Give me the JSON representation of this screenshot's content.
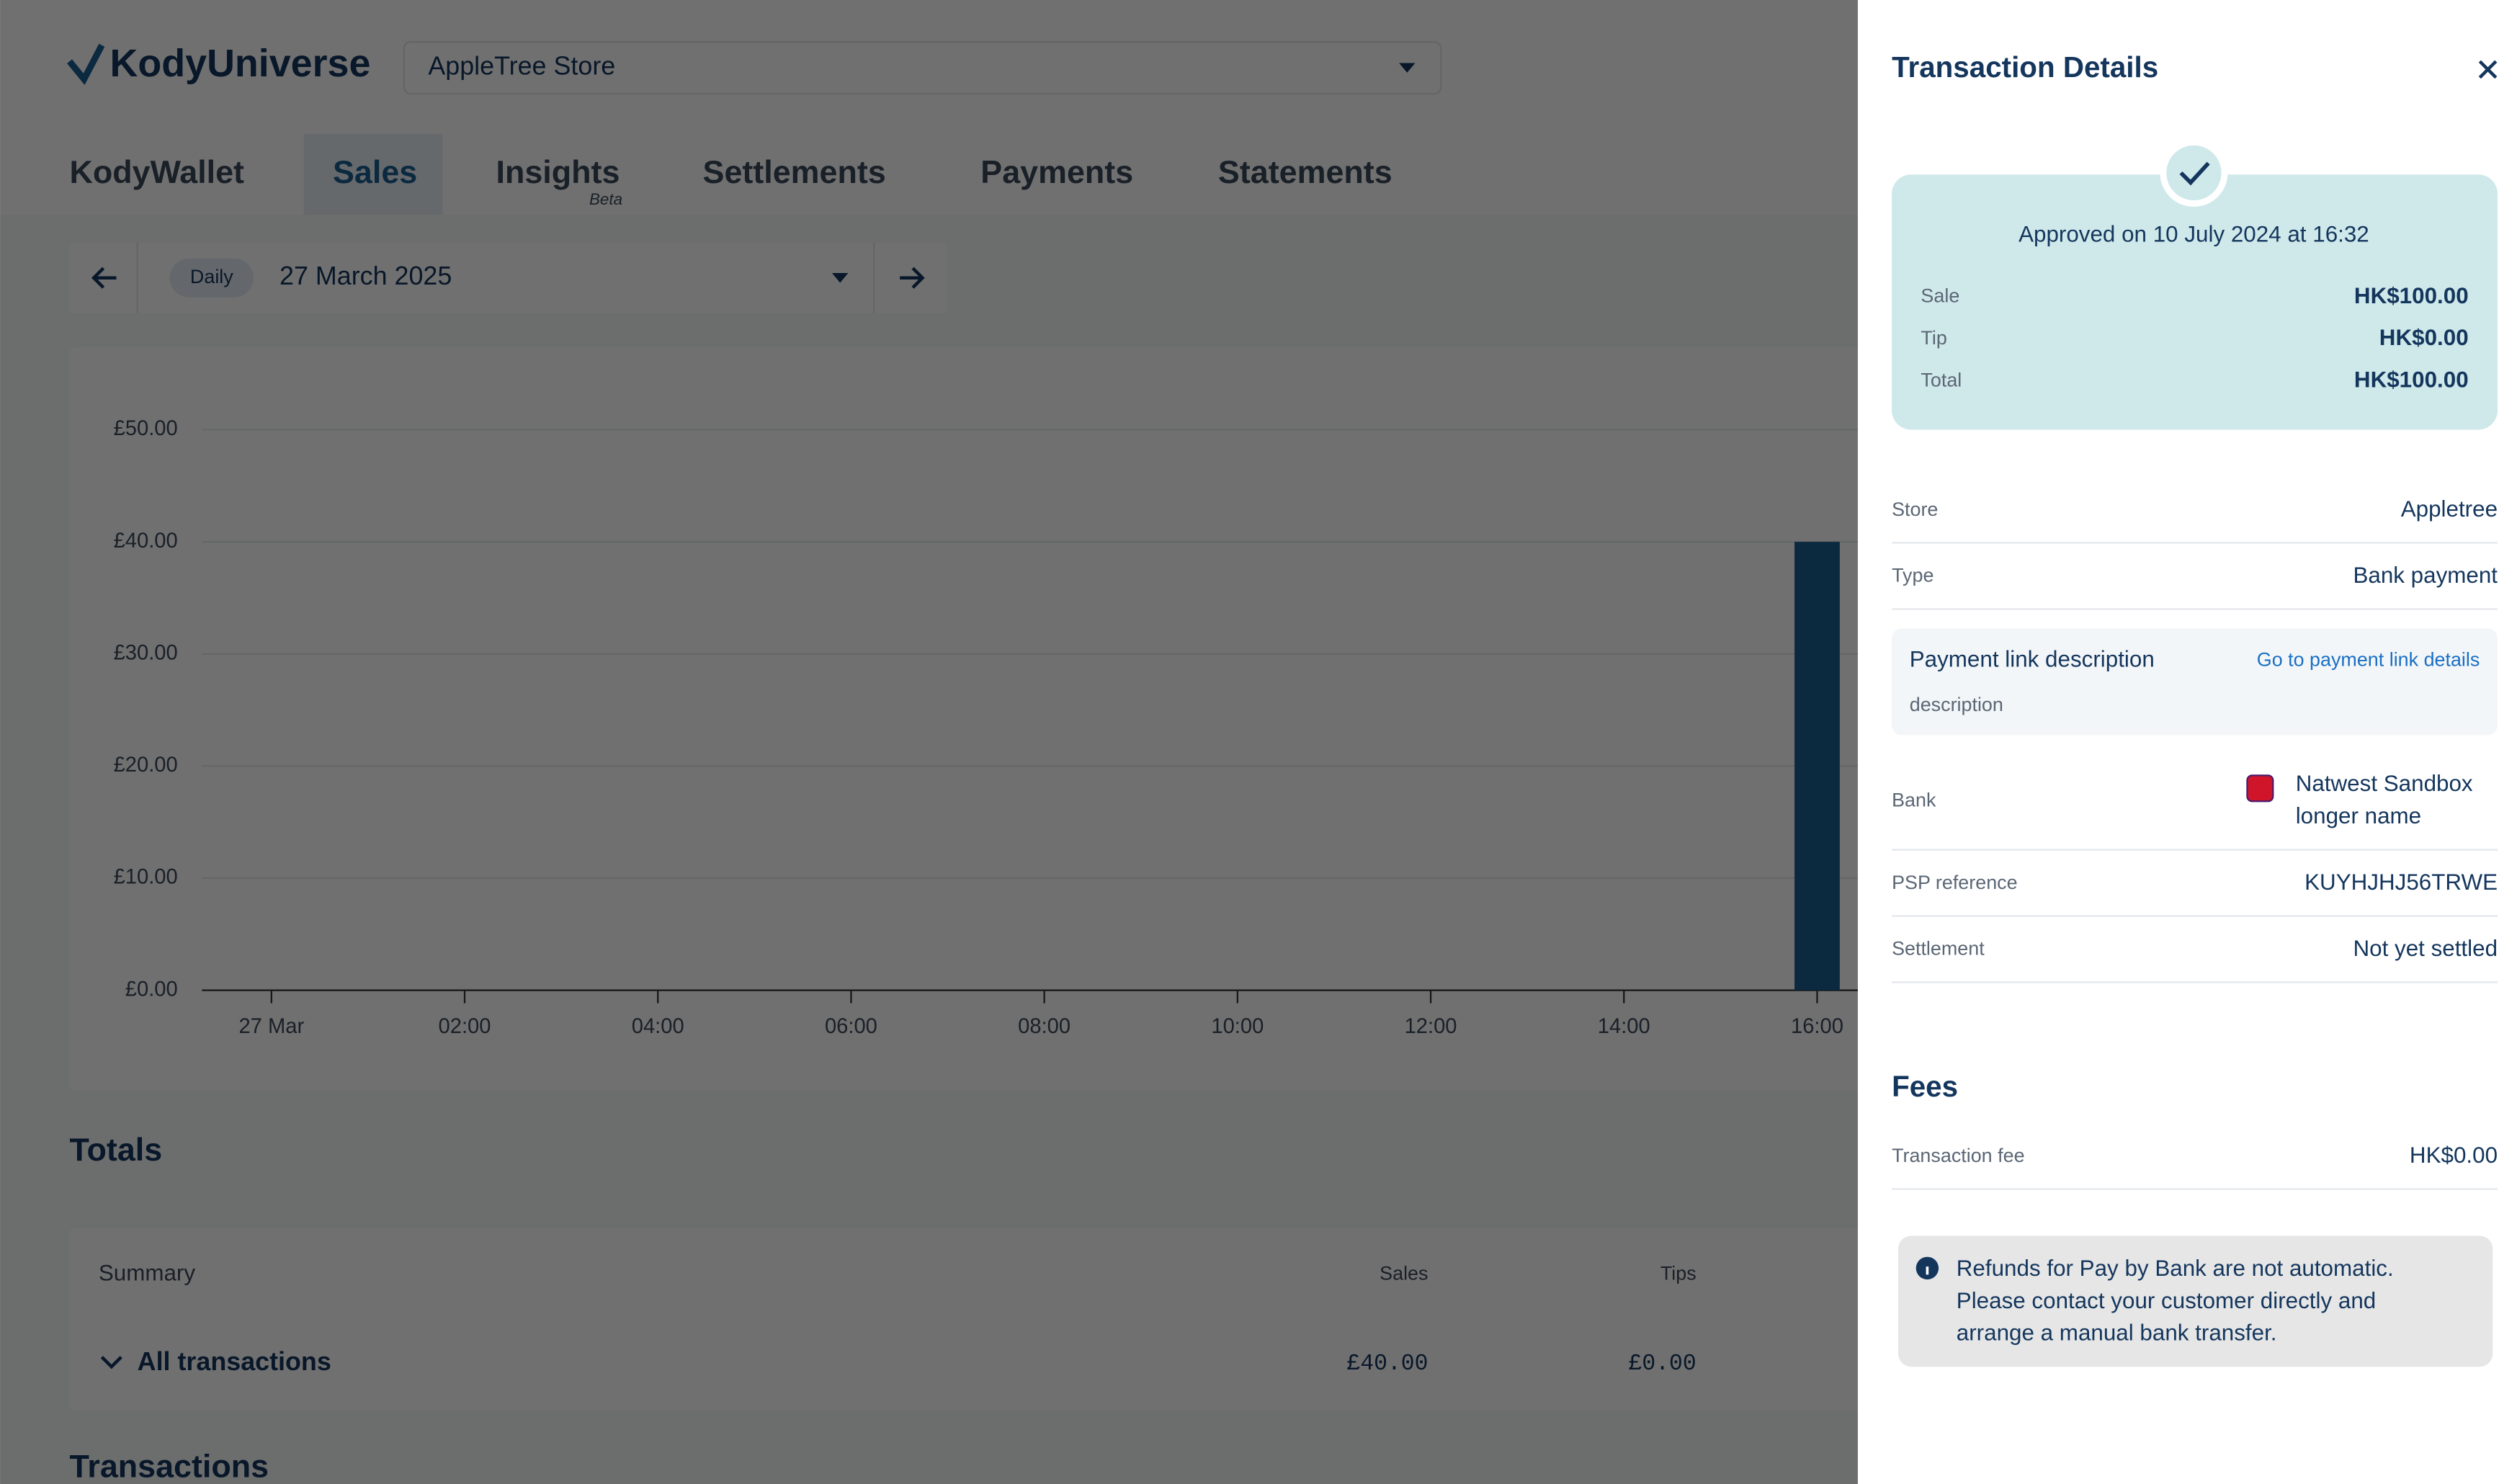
{
  "header": {
    "logo": "KodyUniverse",
    "store": "AppleTree Store"
  },
  "tabs": [
    "KodyWallet",
    "Sales",
    "Insights",
    "Settlements",
    "Payments",
    "Statements"
  ],
  "tab_badge": "Beta",
  "date_picker": {
    "mode": "Daily",
    "date": "27 March 2025"
  },
  "chart_data": {
    "type": "bar",
    "categories": [
      "27 Mar",
      "02:00",
      "04:00",
      "06:00",
      "08:00",
      "10:00",
      "12:00",
      "14:00",
      "16:00"
    ],
    "values": [
      0,
      0,
      0,
      0,
      0,
      0,
      0,
      0,
      40
    ],
    "color": "#1a5d8f",
    "ylim": [
      0,
      50
    ],
    "yticks": [
      {
        "value": 0,
        "label": "£0.00"
      },
      {
        "value": 10,
        "label": "£10.00"
      },
      {
        "value": 20,
        "label": "£20.00"
      },
      {
        "value": 30,
        "label": "£30.00"
      },
      {
        "value": 40,
        "label": "£40.00"
      },
      {
        "value": 50,
        "label": "£50.00"
      }
    ],
    "grid": true
  },
  "totals": {
    "title": "Totals",
    "columns": [
      "Summary",
      "Sales",
      "Tips"
    ],
    "row": {
      "label": "All transactions",
      "sales": "£40.00",
      "tips": "£0.00"
    }
  },
  "transactions_title": "Transactions",
  "panel": {
    "title": "Transaction Details",
    "status": "Approved on 10 July 2024 at 16:32",
    "amounts": [
      [
        "Sale",
        "HK$100.00"
      ],
      [
        "Tip",
        "HK$0.00"
      ],
      [
        "Total",
        "HK$100.00"
      ]
    ],
    "details": [
      [
        "Store",
        "Appletree"
      ],
      [
        "Type",
        "Bank payment"
      ]
    ],
    "payment_link": {
      "label": "Payment link description",
      "link": "Go to payment link details",
      "description": "description"
    },
    "bank": {
      "label": "Bank",
      "name_lines": [
        "Natwest Sandbox",
        "longer name"
      ]
    },
    "details2": [
      [
        "PSP reference",
        "KUYHJHJ56TRWE"
      ],
      [
        "Settlement",
        "Not yet settled"
      ]
    ],
    "fees": {
      "title": "Fees",
      "rows": [
        [
          "Transaction fee",
          "HK$0.00"
        ]
      ]
    },
    "notice": [
      "Refunds for Pay by Bank are not automatic.",
      "Please contact your customer directly and",
      "arrange a manual bank transfer."
    ]
  }
}
